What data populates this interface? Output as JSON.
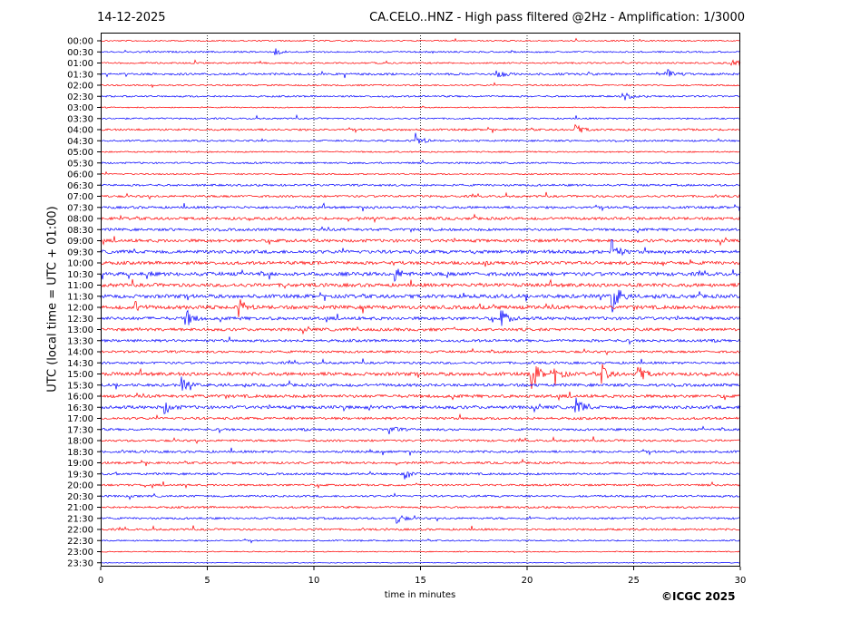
{
  "header": {
    "date": "14-12-2025",
    "title": "CA.CELO..HNZ - High pass filtered @2Hz - Amplification: 1/3000"
  },
  "footer": {
    "copyright": "©ICGC 2025"
  },
  "chart_data": {
    "type": "line",
    "title": "CA.CELO..HNZ - High pass filtered @2Hz - Amplification: 1/3000",
    "xlabel": "time in minutes",
    "ylabel": "UTC (local time = UTC + 01:00)",
    "xlim": [
      0,
      30
    ],
    "x_ticks": [
      "0",
      "5",
      "10",
      "15",
      "20",
      "25",
      "30"
    ],
    "x_gridlines": [
      5,
      10,
      15,
      20,
      25
    ],
    "grid": "dotted vertical",
    "row_labels": [
      "00:00",
      "00:30",
      "01:00",
      "01:30",
      "02:00",
      "02:30",
      "03:00",
      "03:30",
      "04:00",
      "04:30",
      "05:00",
      "05:30",
      "06:00",
      "06:30",
      "07:00",
      "07:30",
      "08:00",
      "08:30",
      "09:00",
      "09:30",
      "10:00",
      "10:30",
      "11:00",
      "11:30",
      "12:00",
      "12:30",
      "13:00",
      "13:30",
      "14:00",
      "14:30",
      "15:00",
      "15:30",
      "16:00",
      "16:30",
      "17:00",
      "17:30",
      "18:00",
      "18:30",
      "19:00",
      "19:30",
      "20:00",
      "20:30",
      "21:00",
      "21:30",
      "22:00",
      "22:30",
      "23:00",
      "23:30"
    ],
    "trace_colors": [
      "#ff0000",
      "#0000ff"
    ],
    "activity": [
      0.2,
      0.3,
      0.3,
      0.5,
      0.3,
      0.35,
      0.15,
      0.3,
      0.45,
      0.35,
      0.25,
      0.35,
      0.25,
      0.45,
      0.5,
      0.6,
      0.7,
      0.65,
      0.8,
      0.9,
      0.85,
      1.0,
      0.95,
      1.0,
      1.0,
      0.85,
      0.75,
      0.65,
      0.55,
      0.55,
      0.9,
      0.75,
      0.8,
      0.85,
      0.6,
      0.55,
      0.5,
      0.55,
      0.5,
      0.5,
      0.45,
      0.45,
      0.45,
      0.45,
      0.45,
      0.25,
      0.12,
      0.05
    ],
    "events": [
      {
        "row": 1,
        "x": 8.2,
        "amp": 0.4
      },
      {
        "row": 2,
        "x": 29.6,
        "amp": 0.6
      },
      {
        "row": 3,
        "x": 18.6,
        "amp": 0.6
      },
      {
        "row": 3,
        "x": 26.5,
        "amp": 0.7
      },
      {
        "row": 5,
        "x": 24.5,
        "amp": 0.5
      },
      {
        "row": 8,
        "x": 22.3,
        "amp": 0.6
      },
      {
        "row": 9,
        "x": 14.8,
        "amp": 0.8
      },
      {
        "row": 19,
        "x": 24.0,
        "amp": 1.2
      },
      {
        "row": 21,
        "x": 13.8,
        "amp": 0.8
      },
      {
        "row": 23,
        "x": 24.0,
        "amp": 2.2
      },
      {
        "row": 24,
        "x": 1.5,
        "amp": 0.9
      },
      {
        "row": 24,
        "x": 6.5,
        "amp": 0.9
      },
      {
        "row": 25,
        "x": 4.0,
        "amp": 1.1
      },
      {
        "row": 25,
        "x": 18.8,
        "amp": 1.0
      },
      {
        "row": 30,
        "x": 20.2,
        "amp": 2.0
      },
      {
        "row": 30,
        "x": 21.3,
        "amp": 1.0
      },
      {
        "row": 30,
        "x": 23.5,
        "amp": 1.1
      },
      {
        "row": 30,
        "x": 25.2,
        "amp": 1.1
      },
      {
        "row": 31,
        "x": 3.8,
        "amp": 0.9
      },
      {
        "row": 33,
        "x": 22.3,
        "amp": 1.1
      },
      {
        "row": 33,
        "x": 3.0,
        "amp": 0.7
      },
      {
        "row": 35,
        "x": 13.5,
        "amp": 0.6
      },
      {
        "row": 39,
        "x": 14.3,
        "amp": 0.6
      },
      {
        "row": 43,
        "x": 13.9,
        "amp": 0.6
      }
    ]
  }
}
